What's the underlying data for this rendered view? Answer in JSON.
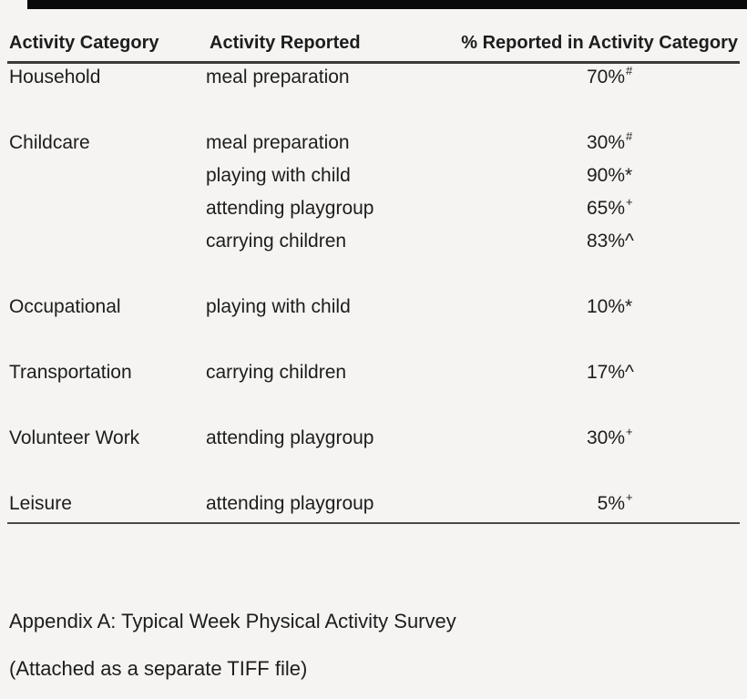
{
  "page": {
    "background_color": "#f5f4f2",
    "text_color": "#1d1d1d",
    "rule_color": "#3a3a3a",
    "top_bar_color": "#0a0a0a"
  },
  "table": {
    "headers": {
      "category": "Activity Category",
      "activity": "Activity Reported",
      "percent": "% Reported in Activity Category"
    },
    "rows": [
      {
        "category": "Household",
        "activity": "meal preparation",
        "value": "70%",
        "symbol": "#",
        "symbol_style": "sup"
      },
      {
        "category": "Childcare",
        "activity": "meal preparation",
        "value": "30%",
        "symbol": "#",
        "symbol_style": "sup"
      },
      {
        "category": "",
        "activity": "playing with child",
        "value": "90%",
        "symbol": "*",
        "symbol_style": "inline"
      },
      {
        "category": "",
        "activity": "attending playgroup",
        "value": "65%",
        "symbol": "+",
        "symbol_style": "sup"
      },
      {
        "category": "",
        "activity": "carrying children",
        "value": "83%",
        "symbol": "^",
        "symbol_style": "inline"
      },
      {
        "category": "Occupational",
        "activity": "playing with child",
        "value": "10%",
        "symbol": "*",
        "symbol_style": "inline"
      },
      {
        "category": "Transportation",
        "activity": "carrying children",
        "value": "17%",
        "symbol": "^",
        "symbol_style": "inline"
      },
      {
        "category": "Volunteer Work",
        "activity": "attending playgroup",
        "value": "30%",
        "symbol": "+",
        "symbol_style": "sup"
      },
      {
        "category": "Leisure",
        "activity": "attending playgroup",
        "value": "5%",
        "symbol": "+",
        "symbol_style": "sup"
      }
    ]
  },
  "footer": {
    "line1": "Appendix A: Typical Week Physical Activity Survey",
    "line2": "(Attached as a separate TIFF file)"
  },
  "chart_data": {
    "type": "table",
    "columns": [
      "Activity Category",
      "Activity Reported",
      "% Reported in Activity Category"
    ],
    "rows": [
      [
        "Household",
        "meal preparation",
        "70%#"
      ],
      [
        "Childcare",
        "meal preparation",
        "30%#"
      ],
      [
        "Childcare",
        "playing with child",
        "90%*"
      ],
      [
        "Childcare",
        "attending playgroup",
        "65%+"
      ],
      [
        "Childcare",
        "carrying children",
        "83%^"
      ],
      [
        "Occupational",
        "playing with child",
        "10%*"
      ],
      [
        "Transportation",
        "carrying children",
        "17%^"
      ],
      [
        "Volunteer Work",
        "attending playgroup",
        "30%+"
      ],
      [
        "Leisure",
        "attending playgroup",
        "5%+"
      ]
    ]
  }
}
